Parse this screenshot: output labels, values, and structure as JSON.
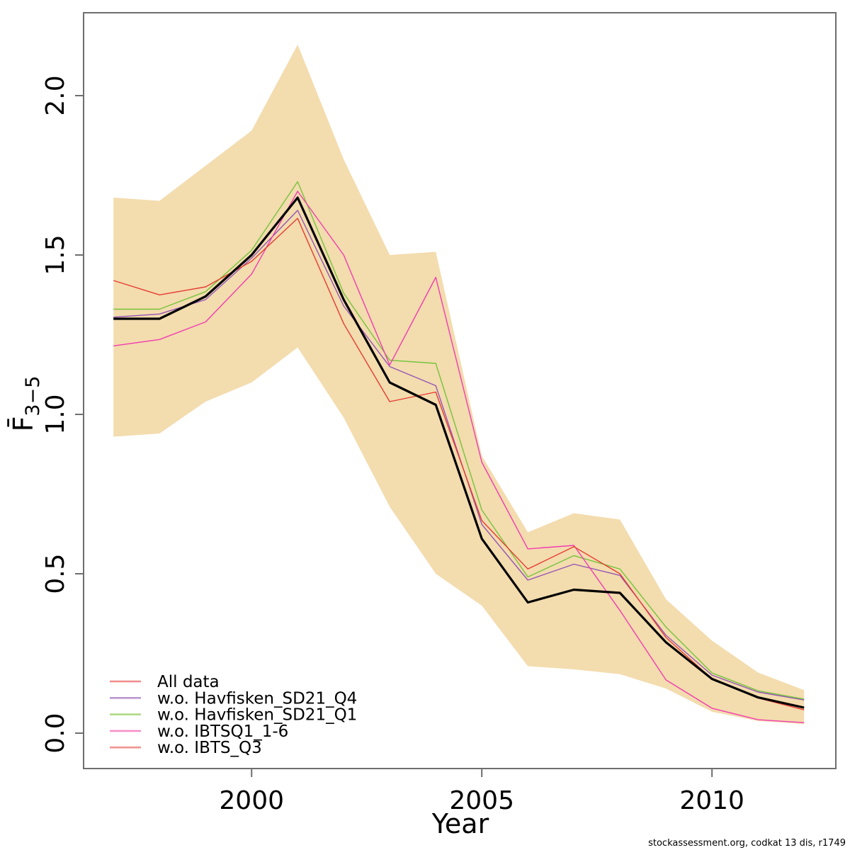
{
  "footer": {
    "text": "stockassessment.org, codkat 13 dis, r1749"
  },
  "chart_data": {
    "type": "line",
    "title": "",
    "xlabel": "Year",
    "ylabel_main": "F̄",
    "ylabel_sub": "3−5",
    "x": [
      1997,
      1998,
      1999,
      2000,
      2001,
      2002,
      2003,
      2004,
      2005,
      2006,
      2007,
      2008,
      2009,
      2010,
      2011,
      2012
    ],
    "xlim": [
      1996.35,
      2012.69
    ],
    "ylim": [
      -0.111,
      2.26
    ],
    "x_ticks": [
      {
        "value": 2000,
        "label": "2000"
      },
      {
        "value": 2005,
        "label": "2005"
      },
      {
        "value": 2010,
        "label": "2010"
      }
    ],
    "y_ticks": [
      {
        "value": 0,
        "label": "0.0"
      },
      {
        "value": 0.5,
        "label": "0.5"
      },
      {
        "value": 1,
        "label": "1.0"
      },
      {
        "value": 1.5,
        "label": "1.5"
      },
      {
        "value": 2,
        "label": "2.0"
      }
    ],
    "grid": false,
    "legend_position": "bottom-left",
    "band": {
      "name": "base-run-confidence-band",
      "fill": "#f3dcae",
      "upper": [
        1.68,
        1.67,
        1.78,
        1.89,
        2.16,
        1.8,
        1.5,
        1.51,
        0.87,
        0.63,
        0.69,
        0.67,
        0.42,
        0.29,
        0.19,
        0.135
      ],
      "lower": [
        0.93,
        0.94,
        1.04,
        1.1,
        1.21,
        0.99,
        0.71,
        0.5,
        0.4,
        0.21,
        0.2,
        0.185,
        0.14,
        0.067,
        0.038,
        0.028
      ]
    },
    "base_series": {
      "name": "base-run-median",
      "color": "#000000",
      "width": 3.2,
      "values": [
        1.3,
        1.3,
        1.37,
        1.5,
        1.68,
        1.36,
        1.1,
        1.03,
        0.61,
        0.41,
        0.45,
        0.44,
        0.285,
        0.17,
        0.112,
        0.08
      ]
    },
    "series": [
      {
        "label": "All data",
        "color": "#e4564b",
        "legend_color": "#f08c8c",
        "width": 1.4,
        "values": [
          1.3,
          1.3,
          1.37,
          1.5,
          1.68,
          1.36,
          1.1,
          1.03,
          0.61,
          0.41,
          0.45,
          0.44,
          0.285,
          0.17,
          0.112,
          0.08
        ]
      },
      {
        "label": "w.o. Havfisken_SD21_Q4",
        "color": "#9455b4",
        "legend_color": "#bb98cf",
        "width": 1.4,
        "values": [
          1.305,
          1.315,
          1.36,
          1.49,
          1.64,
          1.34,
          1.15,
          1.09,
          0.655,
          0.48,
          0.53,
          0.495,
          0.307,
          0.182,
          0.129,
          0.104
        ]
      },
      {
        "label": "w.o. Havfisken_SD21_Q1",
        "color": "#76c43c",
        "legend_color": "#b0d884",
        "width": 1.4,
        "values": [
          1.33,
          1.33,
          1.385,
          1.515,
          1.73,
          1.38,
          1.17,
          1.16,
          0.7,
          0.49,
          0.557,
          0.515,
          0.333,
          0.189,
          0.133,
          0.107
        ]
      },
      {
        "label": "w.o. IBTSQ1_1-6",
        "color": "#f23cb1",
        "legend_color": "#f891c8",
        "width": 1.4,
        "values": [
          1.215,
          1.235,
          1.29,
          1.44,
          1.7,
          1.5,
          1.155,
          1.43,
          0.85,
          0.578,
          0.589,
          0.385,
          0.167,
          0.078,
          0.042,
          0.033
        ]
      },
      {
        "label": "w.o. IBTS_Q3",
        "color": "#e63c32",
        "legend_color": "#f0968f",
        "width": 1.4,
        "values": [
          1.42,
          1.375,
          1.4,
          1.48,
          1.615,
          1.285,
          1.04,
          1.07,
          0.667,
          0.515,
          0.585,
          0.5,
          0.3,
          0.17,
          0.11,
          0.073
        ]
      }
    ]
  },
  "layout_colors": {
    "axis": "#6e6e6e",
    "tick_text": "#000000"
  }
}
